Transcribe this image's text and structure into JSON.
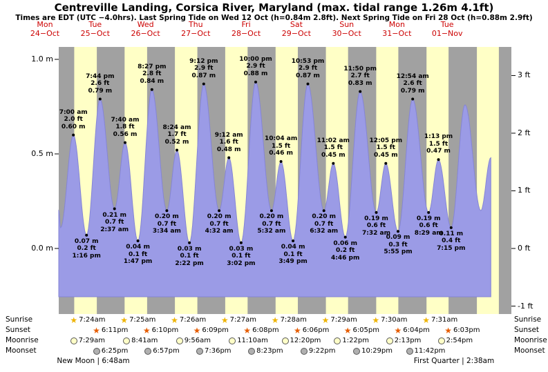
{
  "title": "Centreville Landing, Corsica River, Maryland (max. tidal range 1.26m 4.1ft)",
  "subtitle": "Times are EDT (UTC −4.0hrs). Last Spring Tide on Wed 12 Oct (h=0.84m 2.8ft). Next Spring Tide on Fri 28 Oct (h=0.88m 2.9ft)",
  "colors": {
    "night_band": "#a1a1a1",
    "day_band": "#ffffc6",
    "tide_area": "#9b9be6",
    "tide_outline": "#8585d6",
    "date_label": "#cc0000"
  },
  "chart_data": {
    "type": "area",
    "title": "Centreville Landing, Corsica River, Maryland tide heights",
    "ylabel_left": "meters",
    "ylabel_right": "feet",
    "ylim_m": [
      -0.3,
      1.05
    ],
    "days": [
      {
        "dow": "Mon",
        "date": "24−Oct"
      },
      {
        "dow": "Tue",
        "date": "25−Oct"
      },
      {
        "dow": "Wed",
        "date": "26−Oct"
      },
      {
        "dow": "Thu",
        "date": "27−Oct"
      },
      {
        "dow": "Fri",
        "date": "28−Oct"
      },
      {
        "dow": "Sat",
        "date": "29−Oct"
      },
      {
        "dow": "Sun",
        "date": "30−Oct"
      },
      {
        "dow": "Mon",
        "date": "31−Oct"
      },
      {
        "dow": "Tue",
        "date": "01−Nov"
      }
    ],
    "y_axis": {
      "m_ticks": [
        {
          "value": 1.0,
          "label": "1.0 m"
        },
        {
          "value": 0.5,
          "label": "0.5 m"
        },
        {
          "value": 0.0,
          "label": "0.0 m"
        }
      ],
      "ft_ticks": [
        {
          "value": 3,
          "label": "3 ft"
        },
        {
          "value": 2,
          "label": "2 ft"
        },
        {
          "value": 1,
          "label": "1 ft"
        },
        {
          "value": 0,
          "label": "0 ft"
        },
        {
          "value": -1,
          "label": "-1 ft"
        }
      ]
    },
    "tide_events": [
      {
        "day": 0,
        "type": "high",
        "time": "7:00 am",
        "ft": "2.0 ft",
        "m": "0.60 m",
        "height_m": 0.6
      },
      {
        "day": 0,
        "type": "low",
        "time": "1:16 pm",
        "ft": "0.2 ft",
        "m": "0.07 m",
        "height_m": 0.07
      },
      {
        "day": 0,
        "type": "high",
        "time": "7:44 pm",
        "ft": "2.6 ft",
        "m": "0.79 m",
        "height_m": 0.79
      },
      {
        "day": 1,
        "type": "low",
        "time": "2:37 am",
        "ft": "0.7 ft",
        "m": "0.21 m",
        "height_m": 0.21
      },
      {
        "day": 1,
        "type": "high",
        "time": "7:40 am",
        "ft": "1.8 ft",
        "m": "0.56 m",
        "height_m": 0.56
      },
      {
        "day": 1,
        "type": "low",
        "time": "1:47 pm",
        "ft": "0.1 ft",
        "m": "0.04 m",
        "height_m": 0.04
      },
      {
        "day": 1,
        "type": "high",
        "time": "8:27 pm",
        "ft": "2.8 ft",
        "m": "0.84 m",
        "height_m": 0.84
      },
      {
        "day": 2,
        "type": "low",
        "time": "3:34 am",
        "ft": "0.7 ft",
        "m": "0.20 m",
        "height_m": 0.2
      },
      {
        "day": 2,
        "type": "high",
        "time": "8:24 am",
        "ft": "1.7 ft",
        "m": "0.52 m",
        "height_m": 0.52
      },
      {
        "day": 2,
        "type": "low",
        "time": "2:22 pm",
        "ft": "0.1 ft",
        "m": "0.03 m",
        "height_m": 0.03
      },
      {
        "day": 2,
        "type": "high",
        "time": "9:12 pm",
        "ft": "2.9 ft",
        "m": "0.87 m",
        "height_m": 0.87
      },
      {
        "day": 3,
        "type": "low",
        "time": "4:32 am",
        "ft": "0.7 ft",
        "m": "0.20 m",
        "height_m": 0.2
      },
      {
        "day": 3,
        "type": "high",
        "time": "9:12 am",
        "ft": "1.6 ft",
        "m": "0.48 m",
        "height_m": 0.48
      },
      {
        "day": 3,
        "type": "low",
        "time": "3:02 pm",
        "ft": "0.1 ft",
        "m": "0.03 m",
        "height_m": 0.03
      },
      {
        "day": 3,
        "type": "high",
        "time": "10:00 pm",
        "ft": "2.9 ft",
        "m": "0.88 m",
        "height_m": 0.88
      },
      {
        "day": 4,
        "type": "low",
        "time": "5:32 am",
        "ft": "0.7 ft",
        "m": "0.20 m",
        "height_m": 0.2
      },
      {
        "day": 4,
        "type": "high",
        "time": "10:04 am",
        "ft": "1.5 ft",
        "m": "0.46 m",
        "height_m": 0.46
      },
      {
        "day": 4,
        "type": "low",
        "time": "3:49 pm",
        "ft": "0.1 ft",
        "m": "0.04 m",
        "height_m": 0.04
      },
      {
        "day": 4,
        "type": "high",
        "time": "10:53 pm",
        "ft": "2.9 ft",
        "m": "0.87 m",
        "height_m": 0.87
      },
      {
        "day": 5,
        "type": "low",
        "time": "6:32 am",
        "ft": "0.7 ft",
        "m": "0.20 m",
        "height_m": 0.2
      },
      {
        "day": 5,
        "type": "high",
        "time": "11:02 am",
        "ft": "1.5 ft",
        "m": "0.45 m",
        "height_m": 0.45
      },
      {
        "day": 5,
        "type": "low",
        "time": "4:46 pm",
        "ft": "0.2 ft",
        "m": "0.06 m",
        "height_m": 0.06
      },
      {
        "day": 5,
        "type": "high",
        "time": "11:50 pm",
        "ft": "2.7 ft",
        "m": "0.83 m",
        "height_m": 0.83
      },
      {
        "day": 6,
        "type": "low",
        "time": "7:32 am",
        "ft": "0.6 ft",
        "m": "0.19 m",
        "height_m": 0.19
      },
      {
        "day": 6,
        "type": "high",
        "time": "12:05 pm",
        "ft": "1.5 ft",
        "m": "0.45 m",
        "height_m": 0.45
      },
      {
        "day": 6,
        "type": "low",
        "time": "5:55 pm",
        "ft": "0.3 ft",
        "m": "0.09 m",
        "height_m": 0.09
      },
      {
        "day": 7,
        "type": "high",
        "time": "12:54 am",
        "ft": "2.6 ft",
        "m": "0.79 m",
        "height_m": 0.79
      },
      {
        "day": 7,
        "type": "low",
        "time": "8:29 am",
        "ft": "0.6 ft",
        "m": "0.19 m",
        "height_m": 0.19
      },
      {
        "day": 7,
        "type": "high",
        "time": "1:13 pm",
        "ft": "1.5 ft",
        "m": "0.47 m",
        "height_m": 0.47
      },
      {
        "day": 7,
        "type": "low",
        "time": "7:15 pm",
        "ft": "0.4 ft",
        "m": "0.11 m",
        "height_m": 0.11
      }
    ],
    "curve_helper_points": [
      {
        "t_hours": 0.0,
        "height_m": 0.2
      },
      {
        "t_hours": 0.9,
        "height_m": 0.11
      },
      {
        "t_hours": 193.9,
        "height_m": 0.76
      },
      {
        "t_hours": 201.4,
        "height_m": 0.2
      },
      {
        "t_hours": 206.2,
        "height_m": 0.48
      }
    ]
  },
  "astro": {
    "rows": [
      {
        "name": "sunrise",
        "label": "Sunrise",
        "icon": "sunrise-star-icon",
        "color": "#eeb404",
        "entries": [
          {
            "day": 0,
            "time": "7:24am"
          },
          {
            "day": 1,
            "time": "7:25am"
          },
          {
            "day": 2,
            "time": "7:26am"
          },
          {
            "day": 3,
            "time": "7:27am"
          },
          {
            "day": 4,
            "time": "7:28am"
          },
          {
            "day": 5,
            "time": "7:29am"
          },
          {
            "day": 6,
            "time": "7:30am"
          },
          {
            "day": 7,
            "time": "7:31am"
          }
        ]
      },
      {
        "name": "sunset",
        "label": "Sunset",
        "icon": "sunset-star-icon",
        "color": "#e65c00",
        "entries": [
          {
            "day": 0,
            "time": "6:11pm"
          },
          {
            "day": 1,
            "time": "6:10pm"
          },
          {
            "day": 2,
            "time": "6:09pm"
          },
          {
            "day": 3,
            "time": "6:08pm"
          },
          {
            "day": 4,
            "time": "6:06pm"
          },
          {
            "day": 5,
            "time": "6:05pm"
          },
          {
            "day": 6,
            "time": "6:04pm"
          },
          {
            "day": 7,
            "time": "6:03pm"
          }
        ]
      },
      {
        "name": "moonrise",
        "label": "Moonrise",
        "icon": "moonrise-circle-icon",
        "color": "#ffffc8",
        "entries": [
          {
            "day": 0,
            "time": "7:29am"
          },
          {
            "day": 1,
            "time": "8:41am"
          },
          {
            "day": 2,
            "time": "9:56am"
          },
          {
            "day": 3,
            "time": "11:10am"
          },
          {
            "day": 4,
            "time": "12:20pm"
          },
          {
            "day": 5,
            "time": "1:22pm"
          },
          {
            "day": 6,
            "time": "2:13pm"
          },
          {
            "day": 7,
            "time": "2:54pm"
          }
        ]
      },
      {
        "name": "moonset",
        "label": "Moonset",
        "icon": "moonset-circle-icon",
        "color": "#b0b0b0",
        "entries": [
          {
            "day": 0,
            "time": "6:25pm"
          },
          {
            "day": 1,
            "time": "6:57pm"
          },
          {
            "day": 2,
            "time": "7:36pm"
          },
          {
            "day": 3,
            "time": "8:23pm"
          },
          {
            "day": 4,
            "time": "9:22pm"
          },
          {
            "day": 5,
            "time": "10:29pm"
          },
          {
            "day": 6,
            "time": "11:42pm"
          }
        ]
      }
    ],
    "phases": [
      {
        "name": "new-moon",
        "text": "New Moon | 6:48am"
      },
      {
        "name": "first-quarter",
        "text": "First Quarter | 2:38am"
      }
    ]
  }
}
